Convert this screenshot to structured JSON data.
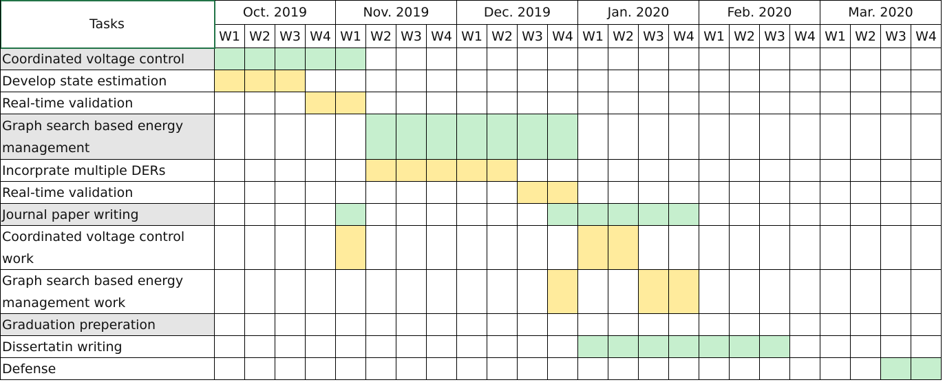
{
  "chart_data": {
    "type": "table",
    "tasks_header": "Tasks",
    "months": [
      "Oct. 2019",
      "Nov. 2019",
      "Dec. 2019",
      "Jan. 2020",
      "Feb. 2020",
      "Mar. 2020"
    ],
    "weeks": [
      "W1",
      "W2",
      "W3",
      "W4"
    ],
    "tasks": [
      {
        "label": "Coordinated voltage control",
        "group": true,
        "span": [
          1,
          5
        ],
        "color": "green"
      },
      {
        "label": "Develop state estimation",
        "group": false,
        "span": [
          1,
          3
        ],
        "color": "yellow"
      },
      {
        "label": "Real-time validation",
        "group": false,
        "span": [
          4,
          5
        ],
        "color": "yellow"
      },
      {
        "label": "Graph search based energy management",
        "group": true,
        "span": [
          6,
          12
        ],
        "color": "green"
      },
      {
        "label": "Incorprate multiple DERs",
        "group": false,
        "span": [
          6,
          10
        ],
        "color": "yellow"
      },
      {
        "label": "Real-time validation",
        "group": false,
        "span": [
          11,
          12
        ],
        "color": "yellow"
      },
      {
        "label": "Journal paper writing",
        "group": true,
        "spans": [
          [
            5,
            5
          ],
          [
            12,
            16
          ]
        ],
        "color": "green"
      },
      {
        "label": "Coordinated voltage control work",
        "group": false,
        "spans": [
          [
            5,
            5
          ],
          [
            13,
            14
          ]
        ],
        "color": "yellow"
      },
      {
        "label": "Graph search based energy management work",
        "group": false,
        "spans": [
          [
            12,
            12
          ],
          [
            15,
            16
          ]
        ],
        "color": "yellow"
      },
      {
        "label": "Graduation preperation",
        "group": true,
        "spans": [],
        "color": "green"
      },
      {
        "label": "Dissertatin writing",
        "group": false,
        "span": [
          13,
          19
        ],
        "color": "green"
      },
      {
        "label": "Defense",
        "group": false,
        "span": [
          23,
          24
        ],
        "color": "green"
      }
    ],
    "colors": {
      "green": "#c6efce",
      "yellow": "#ffeb9c",
      "group_label_bg": "#e5e5e5",
      "selection_border": "#217346"
    }
  }
}
